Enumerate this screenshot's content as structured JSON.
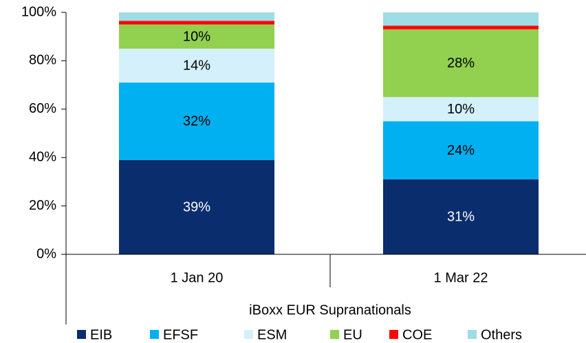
{
  "chart_data": {
    "type": "stacked_bar",
    "categories": [
      "1 Jan 20",
      "1 Mar 22"
    ],
    "x_group_label": "iBoxx EUR Supranationals",
    "series": [
      {
        "name": "EIB",
        "color": "#0a2d6e",
        "values": [
          39,
          31
        ],
        "value_labels": [
          "39%",
          "31%"
        ]
      },
      {
        "name": "EFSF",
        "color": "#00b0f0",
        "values": [
          32,
          24
        ],
        "value_labels": [
          "32%",
          "24%"
        ]
      },
      {
        "name": "ESM",
        "color": "#d4f0fa",
        "values": [
          14,
          10
        ],
        "value_labels": [
          "14%",
          "10%"
        ]
      },
      {
        "name": "EU",
        "color": "#92d050",
        "values": [
          10,
          28
        ],
        "value_labels": [
          "10%",
          "28%"
        ]
      },
      {
        "name": "COE",
        "color": "#ff0000",
        "values": [
          1.5,
          1.5
        ]
      },
      {
        "name": "Others",
        "color": "#9edce6",
        "values": [
          3.5,
          5.5
        ]
      }
    ],
    "ylim": [
      0,
      100
    ],
    "yticks": [
      {
        "value": 0,
        "label": "0%"
      },
      {
        "value": 20,
        "label": "20%"
      },
      {
        "value": 40,
        "label": "40%"
      },
      {
        "value": 60,
        "label": "60%"
      },
      {
        "value": 80,
        "label": "80%"
      },
      {
        "value": 100,
        "label": "100%"
      }
    ],
    "legend": "bottom"
  }
}
